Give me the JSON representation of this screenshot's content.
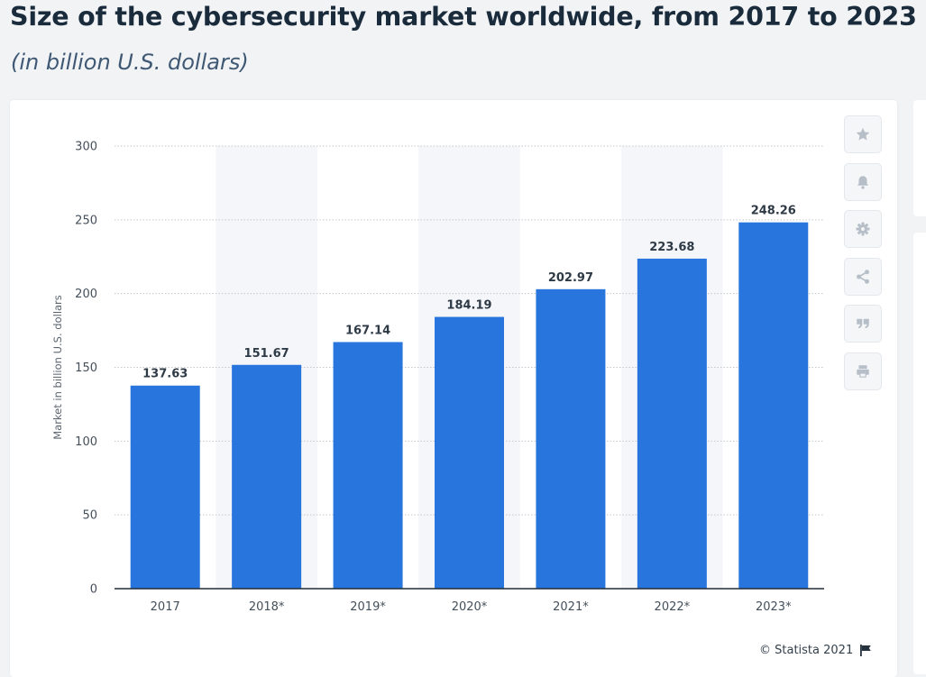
{
  "title": "Size of the cybersecurity market worldwide, from 2017 to 2023",
  "subtitle": "(in billion U.S. dollars)",
  "source": "© Statista 2021",
  "colors": {
    "bar": "#2876dd",
    "band": "#f4f6fa",
    "grid": "#c3c8ce",
    "axis": "#222c36"
  },
  "toolbar": [
    {
      "name": "star-icon"
    },
    {
      "name": "bell-icon"
    },
    {
      "name": "gear-icon"
    },
    {
      "name": "share-icon"
    },
    {
      "name": "quote-icon"
    },
    {
      "name": "print-icon"
    }
  ],
  "chart_data": {
    "type": "bar",
    "categories": [
      "2017",
      "2018*",
      "2019*",
      "2020*",
      "2021*",
      "2022*",
      "2023*"
    ],
    "values": [
      137.63,
      151.67,
      167.14,
      184.19,
      202.97,
      223.68,
      248.26
    ],
    "value_labels": [
      "137.63",
      "151.67",
      "167.14",
      "184.19",
      "202.97",
      "223.68",
      "248.26"
    ],
    "ylabel": "Market in billion U.S. dollars",
    "ylim": [
      0,
      300
    ],
    "yticks": [
      0,
      50,
      100,
      150,
      200,
      250,
      300
    ],
    "grid": true,
    "legend": "none"
  }
}
